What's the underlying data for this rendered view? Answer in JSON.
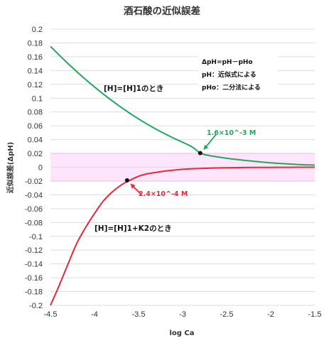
{
  "chart_data": {
    "type": "line",
    "title": "酒石酸の近似誤差",
    "xlabel": "log Ca",
    "ylabel": "近似誤差(ΔpH)",
    "xlim": [
      -4.5,
      -1.5
    ],
    "ylim": [
      -0.2,
      0.2
    ],
    "x_ticks": [
      -4.5,
      -4,
      -3.5,
      -3,
      -2.5,
      -2,
      -1.5
    ],
    "y_ticks": [
      -0.2,
      -0.18,
      -0.16,
      -0.14,
      -0.12,
      -0.1,
      -0.08,
      -0.06,
      -0.04,
      -0.02,
      0,
      0.02,
      0.04,
      0.06,
      0.08,
      0.1,
      0.12,
      0.14,
      0.16,
      0.18,
      0.2
    ],
    "x_tick_labels": [
      "-4.5",
      "-4",
      "-3.5",
      "-3",
      "-2.5",
      "-2",
      "-1.5"
    ],
    "y_tick_labels": [
      "-0.2",
      "-0.18",
      "-0.16",
      "-0.14",
      "-0.12",
      "-0.1",
      "-0.08",
      "-0.06",
      "-0.04",
      "-0.02",
      "0",
      "0.02",
      "0.04",
      "0.06",
      "0.08",
      "0.1",
      "0.12",
      "0.14",
      "0.16",
      "0.18",
      "0.2"
    ],
    "grid": "horizontal",
    "band": {
      "y_from": -0.02,
      "y_to": 0.02,
      "color": "#fde6fb"
    },
    "series": [
      {
        "label": "[H]=[H]1のとき",
        "color": "#1fa85a",
        "x": [
          -4.5,
          -4.3,
          -4.1,
          -3.9,
          -3.7,
          -3.5,
          -3.3,
          -3.1,
          -2.9,
          -2.8,
          -2.7,
          -2.5,
          -2.3,
          -2.1,
          -1.9,
          -1.7,
          -1.5
        ],
        "y": [
          0.175,
          0.15,
          0.127,
          0.106,
          0.087,
          0.07,
          0.055,
          0.042,
          0.03,
          0.0205,
          0.017,
          0.013,
          0.01,
          0.0075,
          0.0055,
          0.004,
          0.003
        ]
      },
      {
        "label": "[H]=[H]1+K2のとき",
        "color": "#e8283a",
        "x": [
          -4.5,
          -4.4,
          -4.3,
          -4.2,
          -4.1,
          -4.0,
          -3.9,
          -3.8,
          -3.7,
          -3.6,
          -3.5,
          -3.4,
          -3.3,
          -3.2,
          -3.0,
          -2.8,
          -2.6,
          -2.4,
          -2.2,
          -2.0,
          -1.8,
          -1.5
        ],
        "y": [
          -0.2,
          -0.171,
          -0.14,
          -0.11,
          -0.087,
          -0.067,
          -0.049,
          -0.036,
          -0.026,
          -0.019,
          -0.013,
          -0.0095,
          -0.0075,
          -0.0055,
          -0.003,
          -0.0018,
          -0.001,
          -0.0006,
          -0.0003,
          -0.0002,
          -0.0001,
          0.0
        ]
      }
    ],
    "markers": [
      {
        "x": -2.8,
        "y": 0.0205,
        "label": "1.6×10^-3 M",
        "color": "#1fa85a"
      },
      {
        "x": -3.63,
        "y": -0.019,
        "label": "2.4×10^-4 M",
        "color": "#e8283a"
      }
    ],
    "annotations": [
      "ΔpH=pH－pHo",
      "pH：近似式による",
      "pHo：二分法による"
    ]
  }
}
